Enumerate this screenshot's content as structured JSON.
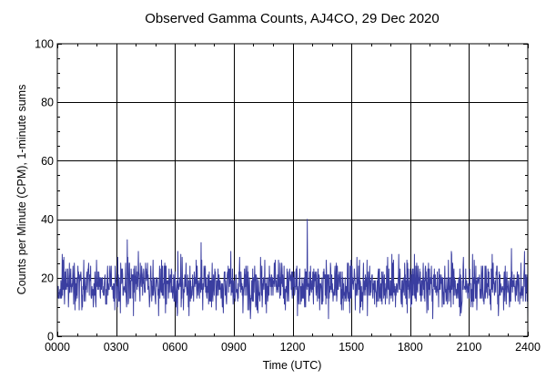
{
  "chart_data": {
    "type": "line",
    "title": "Observed Gamma Counts, AJ4CO, 29 Dec 2020",
    "xlabel": "Time (UTC)",
    "ylabel": "Counts per Minute (CPM), 1-minute sums",
    "xlim": [
      0,
      1440
    ],
    "ylim": [
      0,
      100
    ],
    "x_ticks": [
      {
        "value": 0,
        "label": "0000"
      },
      {
        "value": 180,
        "label": "0300"
      },
      {
        "value": 360,
        "label": "0600"
      },
      {
        "value": 540,
        "label": "0900"
      },
      {
        "value": 720,
        "label": "1200"
      },
      {
        "value": 900,
        "label": "1500"
      },
      {
        "value": 1080,
        "label": "1800"
      },
      {
        "value": 1260,
        "label": "2100"
      },
      {
        "value": 1440,
        "label": "2400"
      }
    ],
    "y_ticks": [
      {
        "value": 0,
        "label": "0"
      },
      {
        "value": 20,
        "label": "20"
      },
      {
        "value": 40,
        "label": "40"
      },
      {
        "value": 60,
        "label": "60"
      },
      {
        "value": 80,
        "label": "80"
      },
      {
        "value": 100,
        "label": "100"
      }
    ],
    "grid": true,
    "series": [
      {
        "color": "#3a3ea0",
        "sampling_interval_minutes": 1,
        "values_summary": {
          "mean": 17.5,
          "min": 6,
          "max": 40
        },
        "notable_points": [
          {
            "x": 765,
            "y": 40
          },
          {
            "x": 214,
            "y": 33
          },
          {
            "x": 440,
            "y": 32
          },
          {
            "x": 1390,
            "y": 30
          }
        ]
      }
    ]
  },
  "colors": {
    "line": "#3a3ea0",
    "grid": "#000000",
    "background": "#ffffff"
  }
}
